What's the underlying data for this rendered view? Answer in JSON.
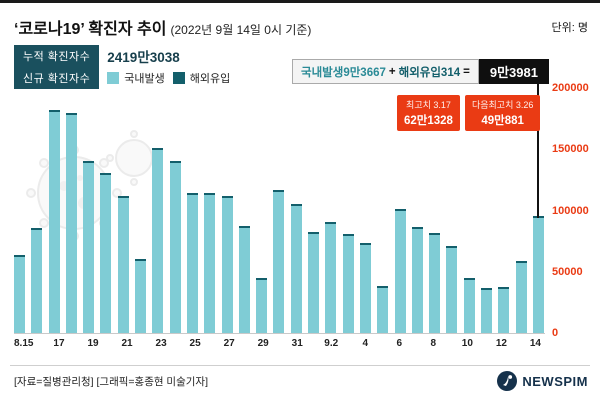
{
  "header": {
    "title": "‘코로나19’ 확진자 추이",
    "subtitle": "(2022년 9월 14일 0시 기준)",
    "unit_label": "단위: 명"
  },
  "legend": {
    "cumulative_badge": "누적 확진자수",
    "cumulative_value": "2419만3038",
    "new_badge": "신규 확진자수",
    "domestic_label": "국내발생",
    "imported_label": "해외유입"
  },
  "callout": {
    "domestic_text": "국내발생9만3667",
    "plus": "+",
    "imported_text": "해외유입314",
    "equals": "=",
    "total_text": "9만3981"
  },
  "peaks": [
    {
      "label": "최고치 3.17",
      "value": "62만1328"
    },
    {
      "label": "다음최고치 3.26",
      "value": "49만881"
    }
  ],
  "footer": {
    "source": "[자료=질병관리청] [그래픽=홍종현 미술기자]",
    "logo_text": "NEWSPIM"
  },
  "colors": {
    "domestic": "#7fccd5",
    "imported": "#135f6b",
    "badge": "#1a505e",
    "red": "#ea3b14",
    "black_box": "#0f0f0f"
  },
  "chart_data": {
    "type": "bar",
    "stacked": true,
    "title": "‘코로나19’ 확진자 추이 (2022년 9월 14일 0시 기준)",
    "xlabel": "",
    "ylabel": "명",
    "ylim": [
      0,
      200000
    ],
    "yticks": [
      0,
      50000,
      100000,
      150000,
      200000
    ],
    "grid": false,
    "legend_position": "top-left",
    "x": [
      "8.15",
      "8.16",
      "8.17",
      "8.18",
      "8.19",
      "8.20",
      "8.21",
      "8.22",
      "8.23",
      "8.24",
      "8.25",
      "8.26",
      "8.27",
      "8.28",
      "8.29",
      "8.30",
      "8.31",
      "9.1",
      "9.2",
      "9.3",
      "9.4",
      "9.5",
      "9.6",
      "9.7",
      "9.8",
      "9.9",
      "9.10",
      "9.11",
      "9.12",
      "9.13",
      "9.14"
    ],
    "tick_labels": [
      "8.15",
      "17",
      "19",
      "21",
      "23",
      "25",
      "27",
      "29",
      "31",
      "9.2",
      "4",
      "6",
      "8",
      "10",
      "12",
      "14"
    ],
    "series": [
      {
        "name": "국내발생",
        "values": [
          61700,
          83737,
          180287,
          178093,
          138384,
          129013,
          110579,
          58759,
          149747,
          138847,
          112938,
          112489,
          110277,
          85446,
          42876,
          115186,
          103530,
          81186,
          89185,
          79399,
          71793,
          36697,
          99418,
          85149,
          80243,
          69070,
          43198,
          34871,
          36115,
          57020,
          93667
        ]
      },
      {
        "name": "해외유입",
        "values": [
          378,
          391,
          516,
          481,
          428,
          398,
          365,
          287,
          511,
          492,
          433,
          412,
          389,
          344,
          266,
          452,
          431,
          387,
          401,
          365,
          334,
          241,
          419,
          391,
          372,
          340,
          259,
          221,
          232,
          289,
          314
        ]
      }
    ],
    "annotations": [
      {
        "text": "국내발생9만3667 + 해외유입314 = 9만3981",
        "target": "9.14"
      },
      {
        "text": "최고치 3.17 62만1328"
      },
      {
        "text": "다음최고치 3.26 49만881"
      }
    ]
  }
}
